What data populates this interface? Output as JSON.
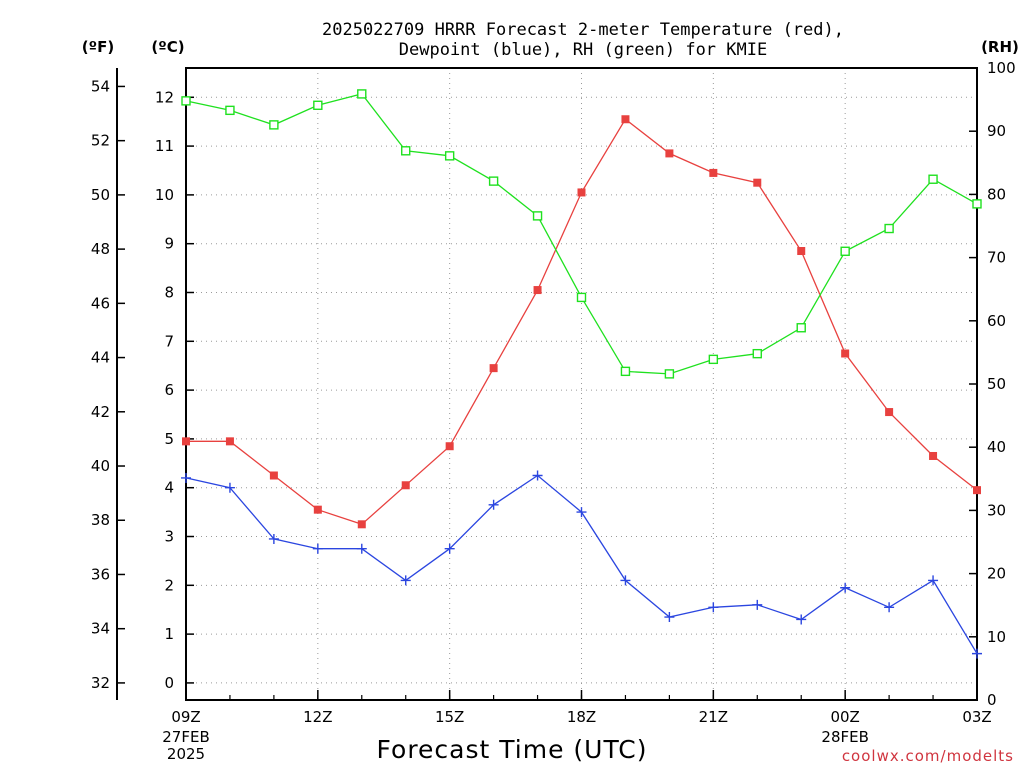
{
  "chart_data": {
    "type": "line",
    "title": "2025022709 HRRR Forecast 2-meter Temperature (red),",
    "subtitle": "Dewpoint (blue), RH (green) for KMIE",
    "xlabel": "Forecast Time (UTC)",
    "credit": "coolwx.com/modelts",
    "left_unit_f": "(ºF)",
    "left_unit_c": "(ºC)",
    "right_unit": "(RH)",
    "x_hours": [
      0,
      1,
      2,
      3,
      4,
      5,
      6,
      7,
      8,
      9,
      10,
      11,
      12,
      13,
      14,
      15,
      16,
      17,
      18
    ],
    "x_ticks": [
      {
        "hour": 0,
        "label": "09Z",
        "sub": [
          "27FEB",
          "2025"
        ]
      },
      {
        "hour": 3,
        "label": "12Z",
        "sub": []
      },
      {
        "hour": 6,
        "label": "15Z",
        "sub": []
      },
      {
        "hour": 9,
        "label": "18Z",
        "sub": []
      },
      {
        "hour": 12,
        "label": "21Z",
        "sub": []
      },
      {
        "hour": 15,
        "label": "00Z",
        "sub": [
          "28FEB"
        ]
      },
      {
        "hour": 18,
        "label": "03Z",
        "sub": []
      }
    ],
    "xlim": [
      0,
      18
    ],
    "celsius_axis": {
      "lim": [
        -0.35,
        12.6
      ],
      "ticks": [
        0,
        1,
        2,
        3,
        4,
        5,
        6,
        7,
        8,
        9,
        10,
        11,
        12
      ]
    },
    "fahrenheit_axis": {
      "ticks": [
        32,
        34,
        36,
        38,
        40,
        42,
        44,
        46,
        48,
        50,
        52,
        54
      ]
    },
    "rh_axis": {
      "lim": [
        0,
        100
      ],
      "ticks": [
        0,
        10,
        20,
        30,
        40,
        50,
        60,
        70,
        80,
        90,
        100
      ]
    },
    "grid": true,
    "series": [
      {
        "name": "Temperature",
        "color": "#e8413f",
        "marker": "filled-square",
        "axis": "celsius",
        "values": [
          4.95,
          4.95,
          4.25,
          3.55,
          3.25,
          4.05,
          4.85,
          6.45,
          8.05,
          10.05,
          11.55,
          10.85,
          10.45,
          10.25,
          8.85,
          6.75,
          5.55,
          4.65,
          3.95
        ]
      },
      {
        "name": "Dewpoint",
        "color": "#2b46e0",
        "marker": "plus",
        "axis": "celsius",
        "values": [
          4.2,
          4.0,
          2.95,
          2.75,
          2.75,
          2.1,
          2.75,
          3.65,
          4.25,
          3.5,
          2.1,
          1.35,
          1.55,
          1.6,
          1.3,
          1.95,
          1.55,
          2.1,
          0.6
        ]
      },
      {
        "name": "RH",
        "color": "#1fe11f",
        "marker": "open-square",
        "axis": "rh",
        "values": [
          94.8,
          93.3,
          91.0,
          94.1,
          95.9,
          86.9,
          86.1,
          82.1,
          76.6,
          63.7,
          52.0,
          51.6,
          53.9,
          54.8,
          58.9,
          71.0,
          74.6,
          82.4,
          78.5
        ]
      }
    ]
  }
}
